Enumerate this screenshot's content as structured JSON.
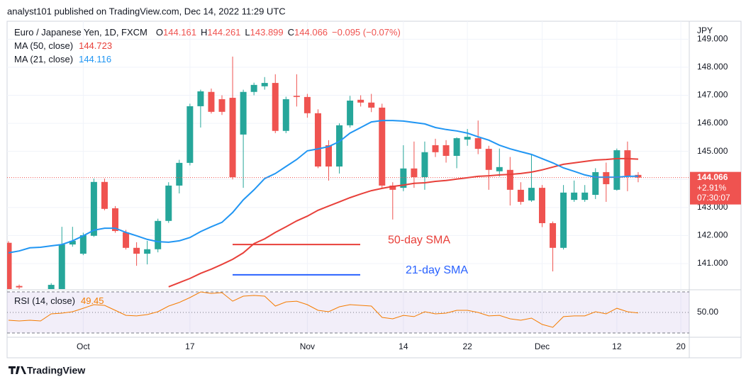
{
  "chart_data": {
    "type": "candlestick",
    "header": "analyst101 published on TradingView.com, Dec 14, 2022 11:29 UTC",
    "title": "Euro / Japanese Yen, 1D, FXCM",
    "quote_prefixes": [
      "O",
      "H",
      "L",
      "C"
    ],
    "change": "−0.095 (−0.07%)",
    "categories": [
      null,
      null,
      null,
      null,
      null,
      null,
      null,
      "Oct",
      null,
      null,
      null,
      null,
      null,
      null,
      null,
      null,
      null,
      "17",
      null,
      null,
      null,
      null,
      null,
      null,
      null,
      null,
      null,
      null,
      "Nov",
      null,
      null,
      null,
      null,
      null,
      null,
      null,
      null,
      "14",
      null,
      null,
      null,
      null,
      null,
      "22",
      null,
      null,
      null,
      null,
      null,
      null,
      "Dec",
      null,
      null,
      null,
      null,
      null,
      null,
      "12",
      null,
      null,
      null,
      null,
      null,
      "20"
    ],
    "open": [
      141.74,
      140.2,
      null,
      null,
      140.09,
      140.09,
      141.68,
      141.35,
      141.99,
      143.91,
      142.97,
      142.11,
      141.56,
      141.35,
      141.51,
      142.52,
      143.78,
      144.59,
      146.61,
      147.12,
      146.86,
      146.91,
      145.6,
      147.12,
      147.32,
      147.44,
      145.73,
      146.98,
      146.94,
      146.36,
      145.22,
      144.46,
      145.93,
      146.84,
      146.74,
      146.56,
      143.78,
      143.7,
      144.39,
      144.08,
      145.22,
      145.22,
      144.84,
      145.42,
      145.47,
      145.09,
      144.29,
      144.34,
      143.63,
      143.25,
      143.7,
      142.44,
      141.56,
      143.27,
      143.27,
      143.45,
      144.26,
      143.63,
      145.04,
      144.161,
      null,
      null,
      null,
      null
    ],
    "high": [
      141.8,
      140.25,
      null,
      null,
      140.3,
      142.31,
      142.31,
      142.1,
      144.03,
      144.03,
      143.05,
      142.2,
      141.76,
      141.81,
      142.6,
      143.9,
      144.7,
      146.7,
      147.2,
      147.24,
      147.0,
      148.38,
      147.2,
      147.45,
      147.65,
      147.75,
      146.95,
      147.75,
      147.05,
      146.5,
      145.4,
      146.0,
      146.98,
      147.0,
      147.05,
      146.7,
      143.9,
      145.22,
      145.35,
      145.35,
      145.45,
      145.4,
      145.5,
      145.8,
      146.1,
      145.2,
      145.1,
      144.8,
      143.9,
      144.89,
      143.8,
      142.5,
      143.8,
      143.96,
      143.8,
      144.4,
      144.6,
      145.1,
      145.35,
      144.261,
      null,
      null,
      null,
      null
    ],
    "low": [
      139.9,
      140.0,
      null,
      null,
      140.0,
      140.0,
      141.6,
      141.3,
      141.95,
      142.9,
      142.1,
      141.5,
      140.92,
      140.97,
      141.4,
      142.45,
      143.5,
      144.5,
      145.85,
      146.35,
      146.3,
      144.0,
      143.7,
      147.0,
      147.2,
      145.65,
      145.65,
      146.6,
      146.2,
      144.4,
      143.96,
      144.21,
      145.85,
      146.6,
      146.4,
      143.7,
      142.57,
      143.58,
      143.7,
      143.63,
      144.8,
      144.6,
      144.4,
      145.2,
      144.9,
      143.63,
      144.1,
      143.07,
      143.1,
      143.2,
      142.3,
      140.72,
      141.5,
      143.2,
      143.2,
      143.3,
      143.2,
      143.6,
      143.58,
      143.899,
      null,
      null,
      null,
      null
    ],
    "close": [
      140.0,
      140.15,
      null,
      null,
      140.24,
      141.68,
      141.81,
      142.01,
      143.91,
      142.95,
      142.16,
      141.56,
      141.35,
      141.51,
      142.52,
      143.78,
      144.59,
      146.61,
      147.14,
      146.41,
      146.41,
      144.08,
      147.12,
      147.37,
      147.44,
      145.73,
      146.86,
      146.94,
      146.36,
      144.46,
      144.46,
      145.93,
      146.81,
      146.74,
      146.56,
      143.78,
      143.63,
      144.39,
      144.08,
      144.97,
      144.97,
      144.84,
      145.47,
      145.52,
      145.09,
      144.34,
      144.44,
      143.63,
      143.2,
      143.7,
      142.44,
      141.56,
      143.53,
      143.53,
      143.53,
      144.26,
      143.83,
      145.04,
      144.13,
      144.066,
      null,
      null,
      null,
      null
    ],
    "up_color": "#26a69a",
    "down_color": "#ef5350",
    "series": [
      {
        "name": "MA (50, close)",
        "color": "#e8403a",
        "values": [
          null,
          null,
          null,
          null,
          null,
          null,
          null,
          null,
          null,
          null,
          null,
          null,
          null,
          null,
          null,
          140.17,
          140.32,
          140.47,
          140.65,
          140.8,
          140.97,
          141.15,
          141.38,
          141.71,
          141.88,
          142.11,
          142.31,
          142.52,
          142.69,
          142.9,
          143.05,
          143.2,
          143.35,
          143.48,
          143.6,
          143.68,
          143.75,
          143.8,
          143.86,
          143.88,
          143.93,
          143.96,
          144.01,
          144.06,
          144.11,
          144.13,
          144.16,
          144.18,
          144.21,
          144.26,
          144.34,
          144.44,
          144.54,
          144.59,
          144.64,
          144.69,
          144.71,
          144.74,
          144.74,
          144.723,
          null,
          null,
          null,
          null
        ]
      },
      {
        "name": "MA (21, close)",
        "color": "#2196f3",
        "values": [
          141.38,
          141.45,
          141.56,
          141.58,
          141.63,
          141.68,
          141.81,
          141.99,
          142.19,
          142.26,
          142.26,
          142.11,
          141.99,
          141.86,
          141.78,
          141.76,
          141.81,
          141.93,
          142.14,
          142.31,
          142.47,
          142.82,
          143.27,
          143.63,
          144.03,
          144.21,
          144.46,
          144.71,
          145.02,
          145.09,
          145.17,
          145.35,
          145.65,
          145.85,
          146.05,
          146.1,
          146.1,
          146.08,
          146.03,
          145.98,
          145.85,
          145.78,
          145.73,
          145.65,
          145.52,
          145.4,
          145.22,
          145.09,
          144.99,
          144.89,
          144.74,
          144.59,
          144.41,
          144.29,
          144.16,
          144.08,
          144.08,
          144.08,
          144.11,
          144.116,
          null,
          null,
          null,
          null
        ]
      }
    ],
    "ylim": [
      140.09,
      149.64
    ],
    "yticks": [
      {
        "value": 141,
        "label": "141.000"
      },
      {
        "value": 142,
        "label": "142.000"
      },
      {
        "value": 143,
        "label": "143.000"
      },
      {
        "value": 144,
        "label": "144.000"
      },
      {
        "value": 145,
        "label": "145.000"
      },
      {
        "value": 146,
        "label": "146.000"
      },
      {
        "value": 147,
        "label": "147.000"
      },
      {
        "value": 148,
        "label": "148.000"
      },
      {
        "value": 149,
        "label": "149.000"
      }
    ],
    "grid": true,
    "currency": "JPY",
    "last_price_tag": {
      "change": "+2.91%",
      "countdown": "07:30:07"
    },
    "annotations": [
      {
        "text": "50-day SMA",
        "color": "#e8403a",
        "level": 141.68
      },
      {
        "text": "21-day SMA",
        "color": "#2962ff",
        "level": 140.6
      }
    ],
    "indicator": {
      "name": "RSI (14, close)",
      "color": "#f57c00",
      "values": [
        42.4,
        41.7,
        42.4,
        41.7,
        48.6,
        49.3,
        50.7,
        54.1,
        57.6,
        56.9,
        52.1,
        47.2,
        46.6,
        47.9,
        50.7,
        56.2,
        59.7,
        64.5,
        70.0,
        68.6,
        69.3,
        61.0,
        65.9,
        66.6,
        65.9,
        56.2,
        60.3,
        61.0,
        57.6,
        52.1,
        50.7,
        55.5,
        57.6,
        56.9,
        56.2,
        45.2,
        43.8,
        47.2,
        45.9,
        50.7,
        48.6,
        49.3,
        52.1,
        52.1,
        50.0,
        46.6,
        47.2,
        43.8,
        42.4,
        44.5,
        38.3,
        35.5,
        45.9,
        46.6,
        46.6,
        50.7,
        48.6,
        54.1,
        50.7,
        49.45,
        null,
        null,
        null,
        null
      ],
      "ylim": [
        28.6,
        71.4
      ],
      "yticks": [
        {
          "value": 50,
          "label": "50.00"
        }
      ],
      "levels": [
        30,
        70
      ]
    },
    "branding": "TradingView"
  }
}
